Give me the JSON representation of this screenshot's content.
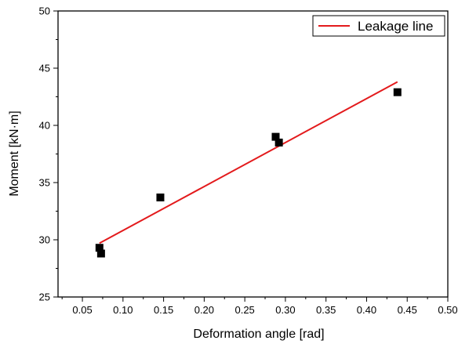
{
  "chart_data": {
    "type": "scatter",
    "xlabel": "Deformation angle [rad]",
    "ylabel": "Moment [kN·m]",
    "xlim": [
      0.02,
      0.5
    ],
    "ylim": [
      25,
      50
    ],
    "xticks": [
      0.05,
      0.1,
      0.15,
      0.2,
      0.25,
      0.3,
      0.35,
      0.4,
      0.45,
      0.5
    ],
    "xtick_labels": [
      "0.05",
      "0.10",
      "0.15",
      "0.20",
      "0.25",
      "0.30",
      "0.35",
      "0.40",
      "0.45",
      "0.50"
    ],
    "yticks": [
      25,
      30,
      35,
      40,
      45,
      50
    ],
    "ytick_labels": [
      "25",
      "30",
      "35",
      "40",
      "45",
      "50"
    ],
    "grid": false,
    "legend": {
      "position": "top-right",
      "entries": [
        "Leakage line"
      ]
    },
    "points": [
      {
        "x": 0.071,
        "y": 29.3
      },
      {
        "x": 0.073,
        "y": 28.8
      },
      {
        "x": 0.146,
        "y": 33.7
      },
      {
        "x": 0.288,
        "y": 39.0
      },
      {
        "x": 0.292,
        "y": 38.5
      },
      {
        "x": 0.438,
        "y": 42.9
      }
    ],
    "series": [
      {
        "name": "Leakage line",
        "type": "line",
        "color": "#e31a1c",
        "x": [
          0.071,
          0.438
        ],
        "y": [
          29.7,
          43.8
        ]
      }
    ],
    "marker_color": "#000000"
  }
}
